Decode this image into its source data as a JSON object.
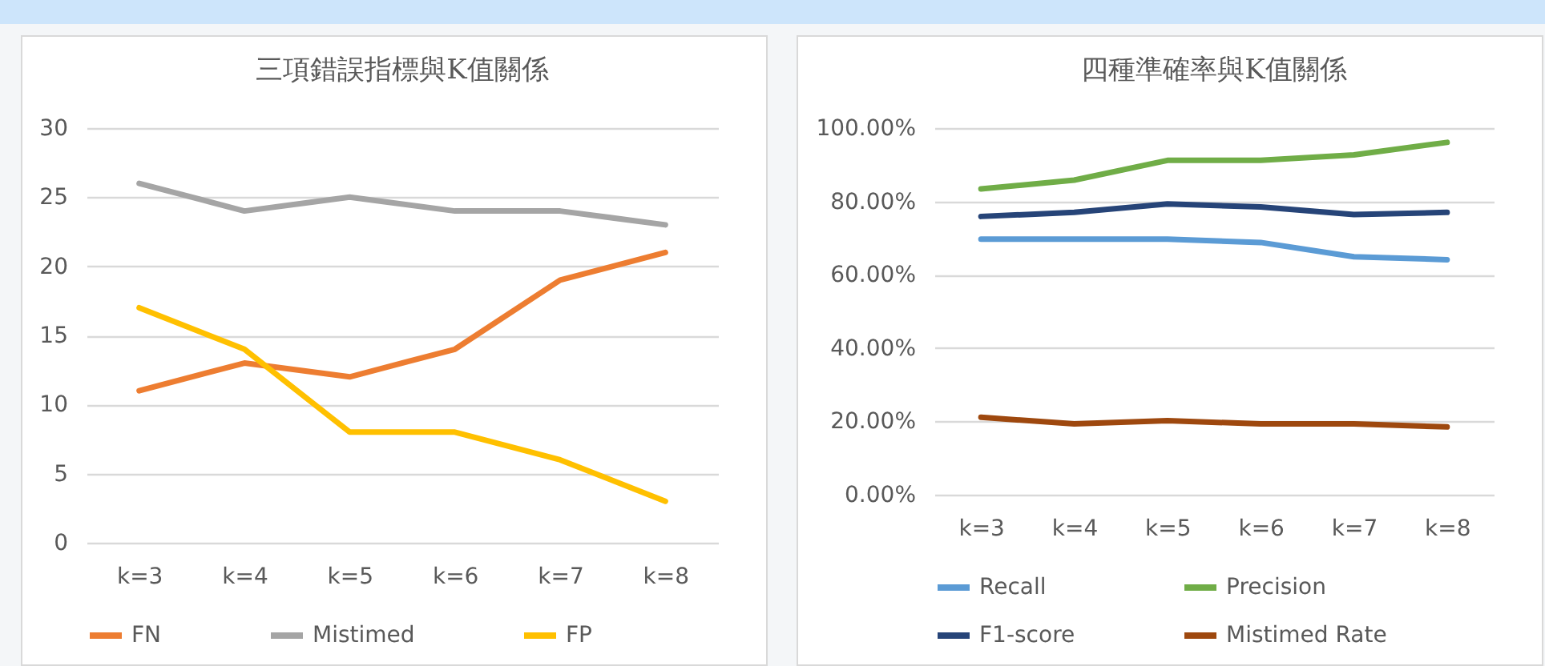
{
  "chart_data": [
    {
      "type": "line",
      "title": "三項錯誤指標與K值關係",
      "categories": [
        "k=3",
        "k=4",
        "k=5",
        "k=6",
        "k=7",
        "k=8"
      ],
      "series": [
        {
          "name": "FN",
          "color": "#ed7d31",
          "values": [
            11,
            13,
            12,
            14,
            19,
            21
          ]
        },
        {
          "name": "Mistimed",
          "color": "#a5a5a5",
          "values": [
            26,
            24,
            25,
            24,
            24,
            23
          ]
        },
        {
          "name": "FP",
          "color": "#ffc000",
          "values": [
            17,
            14,
            8,
            8,
            6,
            3
          ]
        }
      ],
      "ylim": [
        0,
        30
      ],
      "yticks": [
        0,
        5,
        10,
        15,
        20,
        25,
        30
      ],
      "grid": "y",
      "legend": "bottom"
    },
    {
      "type": "line",
      "title": "四種準確率與K值關係",
      "categories": [
        "k=3",
        "k=4",
        "k=5",
        "k=6",
        "k=7",
        "k=8"
      ],
      "series": [
        {
          "name": "Recall",
          "color": "#5b9bd5",
          "values": [
            0.697,
            0.697,
            0.697,
            0.688,
            0.649,
            0.641
          ]
        },
        {
          "name": "Precision",
          "color": "#70ad47",
          "values": [
            0.834,
            0.858,
            0.912,
            0.912,
            0.927,
            0.961
          ]
        },
        {
          "name": "F1-score",
          "color": "#264478",
          "values": [
            0.759,
            0.77,
            0.793,
            0.785,
            0.764,
            0.77
          ]
        },
        {
          "name": "Mistimed Rate",
          "color": "#9e480e",
          "values": [
            0.211,
            0.193,
            0.202,
            0.193,
            0.193,
            0.185
          ]
        }
      ],
      "ylim": [
        0,
        1
      ],
      "yticks": [
        {
          "value": 0,
          "label": "0.00%"
        },
        {
          "value": 0.2,
          "label": "20.00%"
        },
        {
          "value": 0.4,
          "label": "40.00%"
        },
        {
          "value": 0.6,
          "label": "60.00%"
        },
        {
          "value": 0.8,
          "label": "80.00%"
        },
        {
          "value": 1,
          "label": "100.00%"
        }
      ],
      "grid": "y",
      "legend": "bottom"
    }
  ]
}
